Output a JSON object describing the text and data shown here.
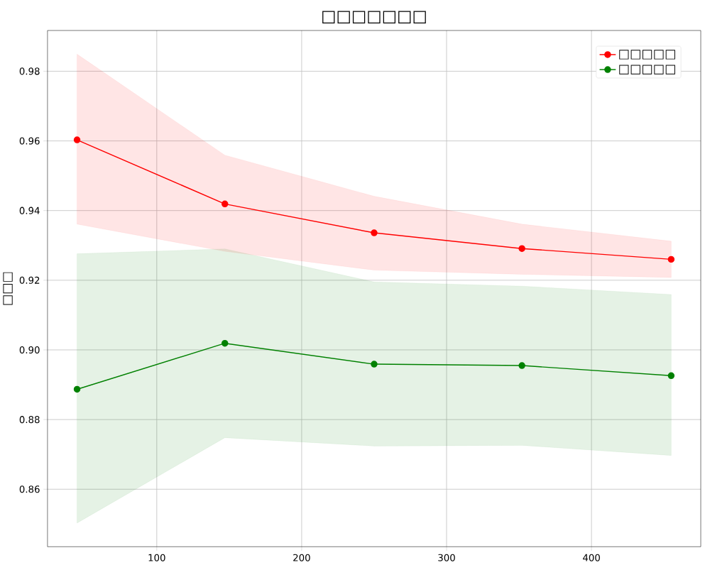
{
  "chart_data": {
    "type": "line",
    "title": "□□□□□□□",
    "ylabel": "□□□",
    "x": [
      45,
      147,
      250,
      352,
      455
    ],
    "xlim": [
      24.6,
      475.4
    ],
    "ylim": [
      0.8435,
      0.9917
    ],
    "xticks": [
      100,
      200,
      300,
      400
    ],
    "yticks": [
      0.86,
      0.88,
      {
        "value": 0.9,
        "label": "0.90"
      },
      0.92,
      0.94,
      0.96,
      0.98
    ],
    "grid": true,
    "legend": "top right",
    "marker": "circle",
    "line_style": "solid",
    "series": [
      {
        "name": "□□□□□",
        "color": "#ff0000",
        "values": [
          0.9603,
          0.9419,
          0.9336,
          0.9291,
          0.926
        ],
        "lower": [
          0.9361,
          0.9283,
          0.9229,
          0.9217,
          0.9208
        ],
        "upper": [
          0.9849,
          0.9559,
          0.9441,
          0.9361,
          0.9312
        ]
      },
      {
        "name": "□□□□□",
        "color": "#008000",
        "values": [
          0.8887,
          0.9019,
          0.8959,
          0.8955,
          0.8926
        ],
        "lower": [
          0.8503,
          0.8748,
          0.8724,
          0.8726,
          0.8697
        ],
        "upper": [
          0.9276,
          0.929,
          0.9195,
          0.9183,
          0.9159
        ]
      }
    ]
  }
}
